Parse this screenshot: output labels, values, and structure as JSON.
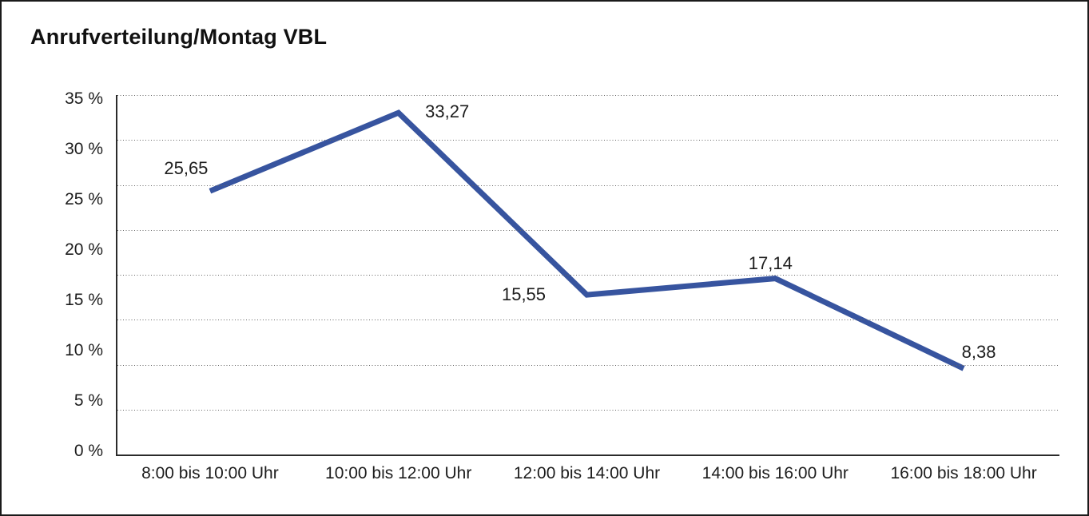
{
  "title": "Anrufverteilung/Montag VBL",
  "colors": {
    "line": "#37549F",
    "text": "#1D1D1D",
    "grid": "#666666",
    "axis": "#2B2B2B",
    "frame": "#1A1A1A",
    "background": "#FFFFFF"
  },
  "chart_data": {
    "type": "line",
    "title": "Anrufverteilung/Montag VBL",
    "categories": [
      "8:00 bis 10:00 Uhr",
      "10:00 bis 12:00 Uhr",
      "12:00 bis 14:00 Uhr",
      "14:00 bis 16:00 Uhr",
      "16:00 bis 18:00 Uhr"
    ],
    "values": [
      25.65,
      33.27,
      15.55,
      17.14,
      8.38
    ],
    "point_labels": [
      "25,65",
      "33,27",
      "15,55",
      "17,14",
      "8,38"
    ],
    "y_tick_labels": [
      "35 %",
      "30 %",
      "25 %",
      "20 %",
      "15 %",
      "10 %",
      "5 %",
      "0 %"
    ],
    "xlabel": "",
    "ylabel": "",
    "ylim": [
      0,
      35
    ],
    "y_step": 5,
    "grid": "horizontal-dotted",
    "legend": "none",
    "line_color": "#37549F"
  }
}
